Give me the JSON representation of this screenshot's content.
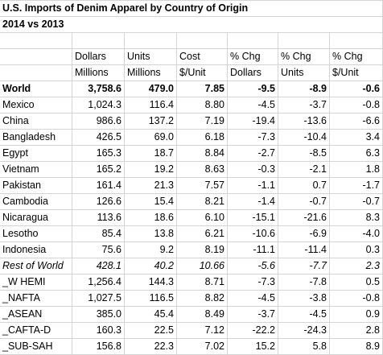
{
  "header": {
    "title": "U.S. Imports of Denim Apparel by Country of Origin",
    "subtitle": "2014 vs 2013"
  },
  "table": {
    "columns": [
      [
        "Dollars",
        "Millions"
      ],
      [
        "Units",
        "Millions"
      ],
      [
        "Cost",
        "$/Unit"
      ],
      [
        "% Chg",
        "Dollars"
      ],
      [
        "% Chg",
        "Units"
      ],
      [
        "% Chg",
        "$/Unit"
      ]
    ],
    "rows": [
      [
        "World",
        "3,758.6",
        "479.0",
        "7.85",
        "-9.5",
        "-8.9",
        "-0.6"
      ],
      [
        "Mexico",
        "1,024.3",
        "116.4",
        "8.80",
        "-4.5",
        "-3.7",
        "-0.8"
      ],
      [
        "China",
        "986.6",
        "137.2",
        "7.19",
        "-19.4",
        "-13.6",
        "-6.6"
      ],
      [
        "Bangladesh",
        "426.5",
        "69.0",
        "6.18",
        "-7.3",
        "-10.4",
        "3.4"
      ],
      [
        "Egypt",
        "165.3",
        "18.7",
        "8.84",
        "-2.7",
        "-8.5",
        "6.3"
      ],
      [
        "Vietnam",
        "165.2",
        "19.2",
        "8.63",
        "-0.3",
        "-2.1",
        "1.8"
      ],
      [
        "Pakistan",
        "161.4",
        "21.3",
        "7.57",
        "-1.1",
        "0.7",
        "-1.7"
      ],
      [
        "Cambodia",
        "126.6",
        "15.4",
        "8.21",
        "-1.4",
        "-0.7",
        "-0.7"
      ],
      [
        "Nicaragua",
        "113.6",
        "18.6",
        "6.10",
        "-15.1",
        "-21.6",
        "8.3"
      ],
      [
        "Lesotho",
        "85.4",
        "13.8",
        "6.21",
        "-10.6",
        "-6.9",
        "-4.0"
      ],
      [
        "Indonesia",
        "75.6",
        "9.2",
        "8.19",
        "-11.1",
        "-11.4",
        "0.3"
      ],
      [
        "Rest of World",
        "428.1",
        "40.2",
        "10.66",
        "-5.6",
        "-7.7",
        "2.3"
      ],
      [
        "_W HEMI",
        "1,256.4",
        "144.3",
        "8.71",
        "-7.3",
        "-7.8",
        "0.5"
      ],
      [
        "_NAFTA",
        "1,027.5",
        "116.5",
        "8.82",
        "-4.5",
        "-3.8",
        "-0.8"
      ],
      [
        "_ASEAN",
        "385.0",
        "45.4",
        "8.49",
        "-3.7",
        "-4.5",
        "0.9"
      ],
      [
        "_CAFTA-D",
        "160.3",
        "22.5",
        "7.12",
        "-22.2",
        "-24.3",
        "2.8"
      ],
      [
        "_SUB-SAH",
        "156.8",
        "22.3",
        "7.02",
        "15.2",
        "5.8",
        "8.9"
      ]
    ]
  }
}
